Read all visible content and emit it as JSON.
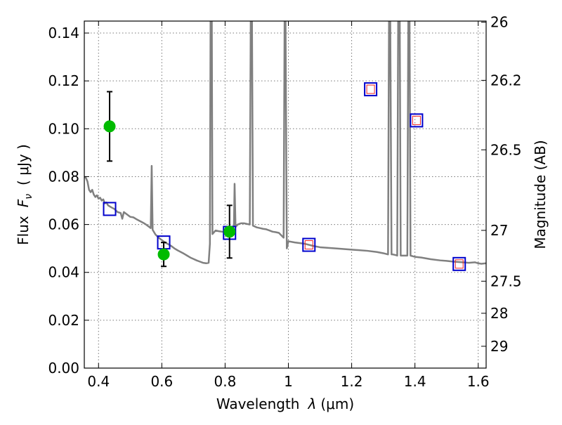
{
  "chart_data": {
    "type": "scatter",
    "xlabel_prefix": "Wavelength",
    "xlabel_symbol": "λ",
    "xlabel_unit": "(μm)",
    "ylabel_prefix": "Flux",
    "ylabel_symbol": "F",
    "ylabel_subscript": "ν",
    "ylabel_unit": "( μJy )",
    "y2label": "Magnitude (AB)",
    "xlim": [
      0.355,
      1.625
    ],
    "ylim": [
      0.0,
      0.145
    ],
    "grid": true,
    "x_ticks": [
      {
        "value": 0.4,
        "label": "0.4"
      },
      {
        "value": 0.6,
        "label": "0.6"
      },
      {
        "value": 0.8,
        "label": "0.8"
      },
      {
        "value": 1.0,
        "label": "1"
      },
      {
        "value": 1.2,
        "label": "1.2"
      },
      {
        "value": 1.4,
        "label": "1.4"
      },
      {
        "value": 1.6,
        "label": "1.6"
      }
    ],
    "y_ticks": [
      {
        "value": 0.0,
        "label": "0.00"
      },
      {
        "value": 0.02,
        "label": "0.02"
      },
      {
        "value": 0.04,
        "label": "0.04"
      },
      {
        "value": 0.06,
        "label": "0.06"
      },
      {
        "value": 0.08,
        "label": "0.08"
      },
      {
        "value": 0.1,
        "label": "0.10"
      },
      {
        "value": 0.12,
        "label": "0.12"
      },
      {
        "value": 0.14,
        "label": "0.14"
      }
    ],
    "y2_ticks": [
      {
        "mag": 26,
        "label": "26"
      },
      {
        "mag": 26.2,
        "label": "26.2"
      },
      {
        "mag": 26.5,
        "label": "26.5"
      },
      {
        "mag": 27,
        "label": "27"
      },
      {
        "mag": 27.5,
        "label": "27.5"
      },
      {
        "mag": 28,
        "label": "28"
      },
      {
        "mag": 29,
        "label": "29"
      }
    ],
    "colors": {
      "template": "#808080",
      "observed": "#00bb00",
      "model_box": "#0000cc",
      "model_inner": "#ee2222",
      "errorbar": "#000000",
      "grid": "#777777"
    },
    "observed_points": [
      {
        "x": 0.435,
        "y": 0.101,
        "yerr": 0.0145
      },
      {
        "x": 0.606,
        "y": 0.0475,
        "yerr": 0.005
      },
      {
        "x": 0.814,
        "y": 0.057,
        "yerr": 0.011
      }
    ],
    "model_points": [
      {
        "x": 0.435,
        "y": 0.0665,
        "inner": false
      },
      {
        "x": 0.606,
        "y": 0.0525,
        "inner": false
      },
      {
        "x": 0.814,
        "y": 0.0565,
        "inner": false
      },
      {
        "x": 1.065,
        "y": 0.0515,
        "inner": true
      },
      {
        "x": 1.26,
        "y": 0.1165,
        "inner": true
      },
      {
        "x": 1.405,
        "y": 0.1035,
        "inner": true
      },
      {
        "x": 1.54,
        "y": 0.0435,
        "inner": true
      }
    ],
    "template_spectrum": [
      [
        0.355,
        0.08
      ],
      [
        0.36,
        0.0795
      ],
      [
        0.365,
        0.078
      ],
      [
        0.37,
        0.0745
      ],
      [
        0.375,
        0.0735
      ],
      [
        0.38,
        0.0745
      ],
      [
        0.385,
        0.0725
      ],
      [
        0.39,
        0.0715
      ],
      [
        0.395,
        0.0722
      ],
      [
        0.4,
        0.0708
      ],
      [
        0.405,
        0.0712
      ],
      [
        0.41,
        0.07
      ],
      [
        0.415,
        0.0705
      ],
      [
        0.42,
        0.0688
      ],
      [
        0.425,
        0.0692
      ],
      [
        0.43,
        0.068
      ],
      [
        0.44,
        0.0672
      ],
      [
        0.45,
        0.0665
      ],
      [
        0.46,
        0.0652
      ],
      [
        0.47,
        0.0648
      ],
      [
        0.475,
        0.0624
      ],
      [
        0.48,
        0.0652
      ],
      [
        0.49,
        0.0642
      ],
      [
        0.5,
        0.0632
      ],
      [
        0.51,
        0.063
      ],
      [
        0.52,
        0.0622
      ],
      [
        0.53,
        0.0615
      ],
      [
        0.54,
        0.0608
      ],
      [
        0.55,
        0.06
      ],
      [
        0.56,
        0.059
      ],
      [
        0.565,
        0.0585
      ],
      [
        0.568,
        0.0845
      ],
      [
        0.571,
        0.0578
      ],
      [
        0.58,
        0.0558
      ],
      [
        0.59,
        0.0545
      ],
      [
        0.6,
        0.0535
      ],
      [
        0.61,
        0.0525
      ],
      [
        0.62,
        0.0518
      ],
      [
        0.63,
        0.051
      ],
      [
        0.64,
        0.05
      ],
      [
        0.65,
        0.0492
      ],
      [
        0.66,
        0.0485
      ],
      [
        0.67,
        0.0478
      ],
      [
        0.68,
        0.047
      ],
      [
        0.69,
        0.0462
      ],
      [
        0.7,
        0.0456
      ],
      [
        0.71,
        0.045
      ],
      [
        0.72,
        0.0445
      ],
      [
        0.73,
        0.044
      ],
      [
        0.74,
        0.0438
      ],
      [
        0.748,
        0.044
      ],
      [
        0.752,
        0.052
      ],
      [
        0.754,
        0.145
      ],
      [
        0.758,
        0.145
      ],
      [
        0.76,
        0.056
      ],
      [
        0.77,
        0.0575
      ],
      [
        0.78,
        0.0572
      ],
      [
        0.79,
        0.057
      ],
      [
        0.8,
        0.0568
      ],
      [
        0.81,
        0.0565
      ],
      [
        0.82,
        0.056
      ],
      [
        0.828,
        0.06
      ],
      [
        0.83,
        0.077
      ],
      [
        0.833,
        0.059
      ],
      [
        0.84,
        0.06
      ],
      [
        0.85,
        0.0605
      ],
      [
        0.86,
        0.0605
      ],
      [
        0.87,
        0.0602
      ],
      [
        0.878,
        0.06
      ],
      [
        0.881,
        0.145
      ],
      [
        0.885,
        0.145
      ],
      [
        0.888,
        0.0595
      ],
      [
        0.9,
        0.0588
      ],
      [
        0.91,
        0.0585
      ],
      [
        0.92,
        0.0582
      ],
      [
        0.93,
        0.058
      ],
      [
        0.94,
        0.0575
      ],
      [
        0.95,
        0.057
      ],
      [
        0.96,
        0.0568
      ],
      [
        0.97,
        0.0565
      ],
      [
        0.985,
        0.0545
      ],
      [
        0.988,
        0.145
      ],
      [
        0.991,
        0.145
      ],
      [
        0.995,
        0.05
      ],
      [
        1.0,
        0.053
      ],
      [
        1.02,
        0.0525
      ],
      [
        1.05,
        0.052
      ],
      [
        1.08,
        0.051
      ],
      [
        1.1,
        0.0505
      ],
      [
        1.15,
        0.05
      ],
      [
        1.2,
        0.0495
      ],
      [
        1.25,
        0.049
      ],
      [
        1.28,
        0.0485
      ],
      [
        1.3,
        0.048
      ],
      [
        1.315,
        0.0475
      ],
      [
        1.318,
        0.145
      ],
      [
        1.322,
        0.145
      ],
      [
        1.326,
        0.0475
      ],
      [
        1.33,
        0.0475
      ],
      [
        1.34,
        0.0472
      ],
      [
        1.344,
        0.047
      ],
      [
        1.347,
        0.145
      ],
      [
        1.352,
        0.145
      ],
      [
        1.355,
        0.047
      ],
      [
        1.37,
        0.047
      ],
      [
        1.376,
        0.047
      ],
      [
        1.379,
        0.145
      ],
      [
        1.383,
        0.145
      ],
      [
        1.386,
        0.047
      ],
      [
        1.4,
        0.0465
      ],
      [
        1.42,
        0.0462
      ],
      [
        1.45,
        0.0455
      ],
      [
        1.48,
        0.045
      ],
      [
        1.5,
        0.0448
      ],
      [
        1.52,
        0.0445
      ],
      [
        1.55,
        0.0442
      ],
      [
        1.57,
        0.044
      ],
      [
        1.59,
        0.0442
      ],
      [
        1.6,
        0.0438
      ],
      [
        1.61,
        0.0436
      ],
      [
        1.625,
        0.0438
      ]
    ]
  }
}
